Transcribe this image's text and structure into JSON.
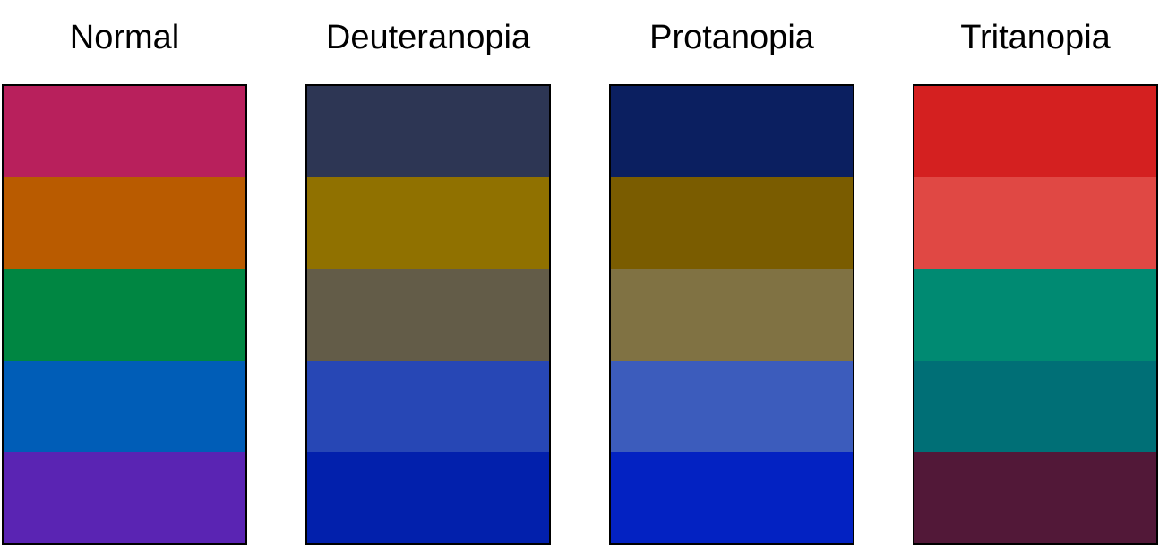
{
  "panels": [
    {
      "title": "Normal",
      "swatches": [
        "#b8205c",
        "#b95b00",
        "#008642",
        "#005db7",
        "#5a24b3"
      ]
    },
    {
      "title": "Deuteranopia",
      "swatches": [
        "#2d3654",
        "#907100",
        "#635c48",
        "#2747b5",
        "#0220ac"
      ]
    },
    {
      "title": "Protanopia",
      "swatches": [
        "#0b1f60",
        "#7a5c00",
        "#807243",
        "#3c5cbc",
        "#0322c2"
      ]
    },
    {
      "title": "Tritanopia",
      "swatches": [
        "#d42020",
        "#e04844",
        "#008a72",
        "#006f76",
        "#521838"
      ]
    }
  ]
}
